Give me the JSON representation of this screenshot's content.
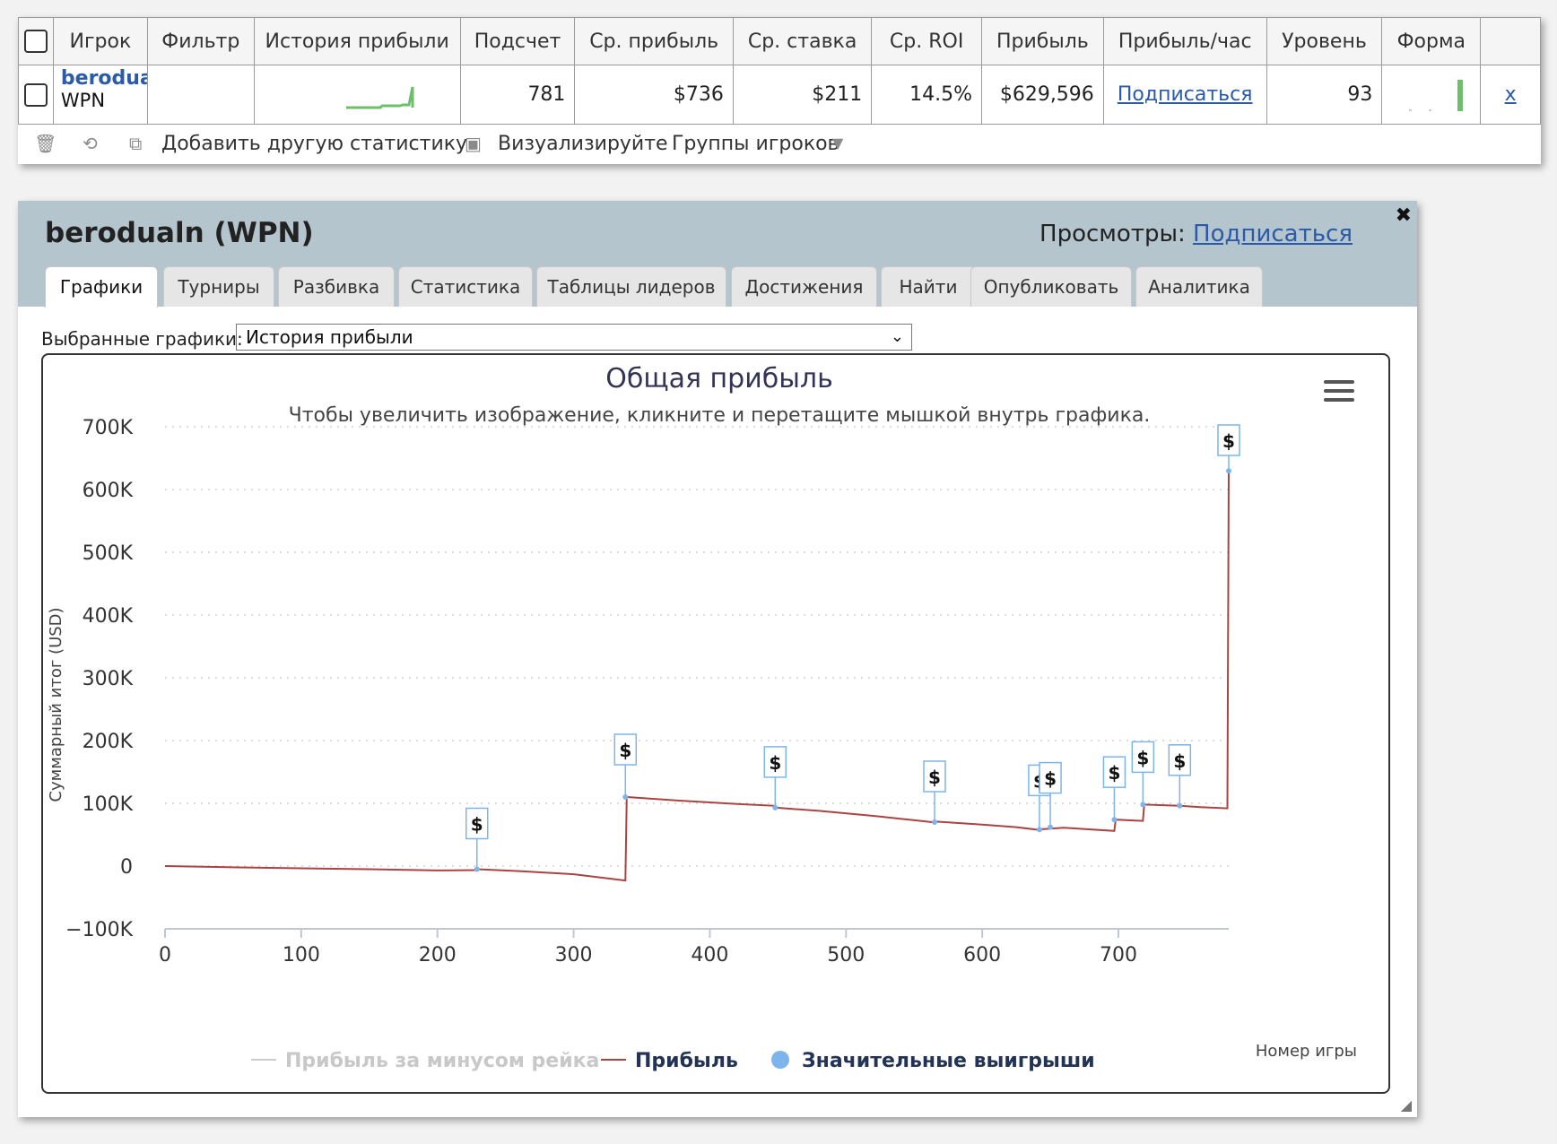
{
  "stats_table": {
    "headers": [
      "Игрок",
      "Фильтр",
      "История прибыли",
      "Подсчет",
      "Ср. прибыль",
      "Ср. ставка",
      "Ср. ROI",
      "Прибыль",
      "Прибыль/час",
      "Уровень",
      "Форма"
    ],
    "row": {
      "player_name": "berodualn",
      "network": "WPN",
      "filter": "",
      "count": "781",
      "avg_profit": "$736",
      "avg_stake": "$211",
      "avg_roi": "14.5%",
      "profit": "$629,596",
      "profit_per_hour": "Подписаться",
      "level": "93",
      "remove": "x"
    },
    "toolbar": {
      "add_stats": "Добавить другую статистику",
      "visualize": "Визуализируйте",
      "player_groups": "Группы игроков"
    },
    "icons": [
      "trash-icon",
      "refresh-icon",
      "add-window-icon",
      "image-icon",
      "caret-down-icon"
    ]
  },
  "panel": {
    "title": "berodualn (WPN)",
    "views_label": "Просмотры:",
    "views_link": "Подписаться",
    "close": "✖",
    "tabs": [
      {
        "label": "Графики",
        "active": true
      },
      {
        "label": "Турниры"
      },
      {
        "label": "Разбивка"
      },
      {
        "label": "Статистика"
      },
      {
        "label": "Таблицы лидеров"
      },
      {
        "label": "Достижения"
      },
      {
        "label": "Найти"
      },
      {
        "label": "Опубликовать"
      },
      {
        "label": "Аналитика"
      }
    ],
    "chart_select_label": "Выбранные графики:",
    "chart_select_value": "История прибыли"
  },
  "chart_data": {
    "type": "line",
    "title": "Общая прибыль",
    "subtitle": "Чтобы увеличить изображение, кликните и перетащите мышкой внутрь графика.",
    "xlabel": "Номер игры",
    "ylabel": "Суммарный итог (USD)",
    "xlim": [
      0,
      781
    ],
    "ylim": [
      -100000,
      700000
    ],
    "x_ticks": [
      0,
      100,
      200,
      300,
      400,
      500,
      600,
      700
    ],
    "y_ticks": [
      -100000,
      0,
      100000,
      200000,
      300000,
      400000,
      500000,
      600000,
      700000
    ],
    "y_tick_labels": [
      "−100K",
      "0",
      "100K",
      "200K",
      "300K",
      "400K",
      "500K",
      "600K",
      "700K"
    ],
    "grid": true,
    "legend_position": "bottom",
    "series": [
      {
        "name": "Прибыль за минусом рейка",
        "color": "#cccccc",
        "visible": false,
        "points": []
      },
      {
        "name": "Прибыль",
        "color": "#a94442",
        "points": [
          [
            0,
            0
          ],
          [
            50,
            -2000
          ],
          [
            100,
            -3500
          ],
          [
            150,
            -5000
          ],
          [
            200,
            -7000
          ],
          [
            228,
            -6500
          ],
          [
            229,
            -5000
          ],
          [
            260,
            -8000
          ],
          [
            300,
            -13000
          ],
          [
            338,
            -23000
          ],
          [
            339,
            110000
          ],
          [
            380,
            104000
          ],
          [
            420,
            99000
          ],
          [
            448,
            96000
          ],
          [
            449,
            93000
          ],
          [
            480,
            88000
          ],
          [
            520,
            80000
          ],
          [
            563,
            70000
          ],
          [
            565,
            71000
          ],
          [
            600,
            66000
          ],
          [
            625,
            62000
          ],
          [
            640,
            58000
          ],
          [
            645,
            59000
          ],
          [
            660,
            61000
          ],
          [
            697,
            56000
          ],
          [
            698,
            74000
          ],
          [
            718,
            72000
          ],
          [
            719,
            98000
          ],
          [
            745,
            96000
          ],
          [
            760,
            94000
          ],
          [
            780,
            92000
          ],
          [
            781,
            629596
          ]
        ]
      },
      {
        "name": "Значительные выигрыши",
        "color": "#7cb5ec",
        "type": "flags",
        "points": [
          [
            229,
            -5000
          ],
          [
            338,
            110000
          ],
          [
            448,
            93000
          ],
          [
            565,
            70000
          ],
          [
            642,
            58000
          ],
          [
            650,
            62000
          ],
          [
            697,
            74000
          ],
          [
            718,
            98000
          ],
          [
            745,
            96000
          ],
          [
            781,
            629596
          ]
        ],
        "flag_label": "$"
      }
    ]
  }
}
